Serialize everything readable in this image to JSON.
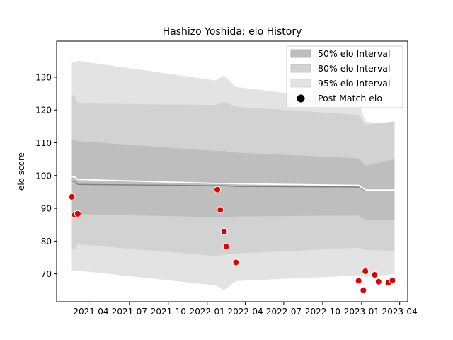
{
  "chart_data": {
    "type": "area",
    "title": "Hashizo Yoshida: elo History",
    "xlabel": "",
    "ylabel": "elo score",
    "xlim": [
      "2021-01-10",
      "2023-04-20"
    ],
    "ylim": [
      61.5,
      141
    ],
    "x_ticks": [
      "2021-04",
      "2021-07",
      "2021-10",
      "2022-01",
      "2022-04",
      "2022-07",
      "2022-10",
      "2023-01",
      "2023-04"
    ],
    "y_ticks": [
      70,
      80,
      90,
      100,
      110,
      120,
      130
    ],
    "grid": false,
    "legend_position": "top-right",
    "legend": [
      "50% elo Interval",
      "80% elo Interval",
      "95% elo Interval",
      "Post Match elo"
    ],
    "colors": {
      "band50": "#bebebe",
      "band80": "#d2d2d2",
      "band95": "#e3e3e3",
      "mean_line": "#808080",
      "post_line": "#ffffff",
      "points": "#e00000",
      "point_edge": "#ffffff"
    },
    "bands": {
      "dates": [
        "2021-02-15",
        "2021-02-22",
        "2021-03-01",
        "2022-01-20",
        "2022-02-10",
        "2022-03-10",
        "2022-12-25",
        "2023-01-10",
        "2023-03-20"
      ],
      "ci50_low": [
        88.5,
        88.5,
        88.2,
        87.3,
        87.3,
        87.5,
        87.8,
        86.5,
        86.5
      ],
      "ci50_high": [
        111.0,
        111.0,
        110.5,
        107.5,
        107.5,
        107.0,
        105.3,
        103.0,
        105.0
      ],
      "ci80_low": [
        77.7,
        77.7,
        79.0,
        75.5,
        75.8,
        76.2,
        78.0,
        77.3,
        77.0
      ],
      "ci80_high": [
        124.5,
        124.5,
        122.0,
        121.5,
        122.5,
        121.0,
        118.5,
        115.5,
        116.5
      ],
      "ci95_low": [
        71.0,
        71.0,
        71.0,
        66.5,
        65.0,
        67.8,
        69.5,
        69.0,
        70.0
      ],
      "ci95_high": [
        134.5,
        134.5,
        135.0,
        129.0,
        130.5,
        127.0,
        122.5,
        116.5,
        115.0
      ],
      "mean": [
        98.3,
        98.3,
        97.3,
        96.9,
        96.9,
        96.7,
        96.5,
        95.4,
        95.4
      ],
      "post": [
        99.6,
        99.6,
        98.8,
        97.6,
        97.6,
        97.5,
        97.0,
        95.6,
        95.6
      ]
    },
    "points": {
      "dates": [
        "2021-02-15",
        "2021-02-22",
        "2021-03-01",
        "2022-01-25",
        "2022-02-01",
        "2022-02-10",
        "2022-02-15",
        "2022-03-10",
        "2022-12-25",
        "2023-01-05",
        "2023-01-10",
        "2023-02-01",
        "2023-02-10",
        "2023-03-05",
        "2023-03-15"
      ],
      "values": [
        93.5,
        88.0,
        88.3,
        95.7,
        89.5,
        82.9,
        78.3,
        73.5,
        67.9,
        65.0,
        70.8,
        69.7,
        67.6,
        67.3,
        68.0
      ]
    }
  }
}
